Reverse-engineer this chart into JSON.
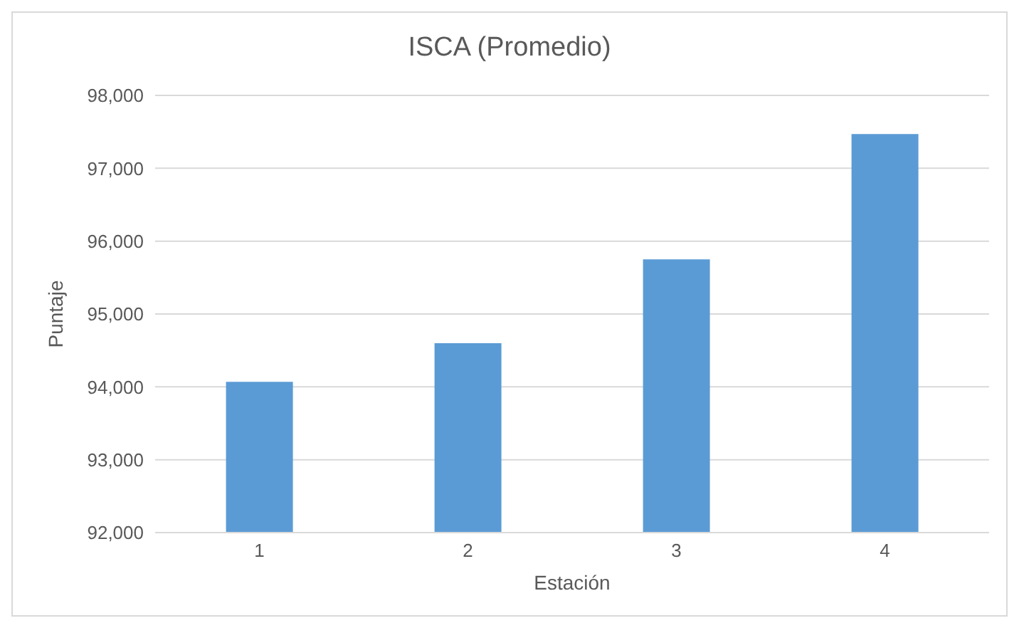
{
  "chart_data": {
    "type": "bar",
    "title": "ISCA (Promedio)",
    "xlabel": "Estación",
    "ylabel": "Puntaje",
    "categories": [
      "1",
      "2",
      "3",
      "4"
    ],
    "values": [
      94070,
      94600,
      95750,
      97470
    ],
    "color": "#5b9bd5",
    "ylim": [
      92000,
      98000
    ],
    "yticks": [
      {
        "value": 92000,
        "label": "92,000"
      },
      {
        "value": 93000,
        "label": "93,000"
      },
      {
        "value": 94000,
        "label": "94,000"
      },
      {
        "value": 95000,
        "label": "95,000"
      },
      {
        "value": 96000,
        "label": "96,000"
      },
      {
        "value": 97000,
        "label": "97,000"
      },
      {
        "value": 98000,
        "label": "98,000"
      }
    ],
    "grid": "y"
  }
}
